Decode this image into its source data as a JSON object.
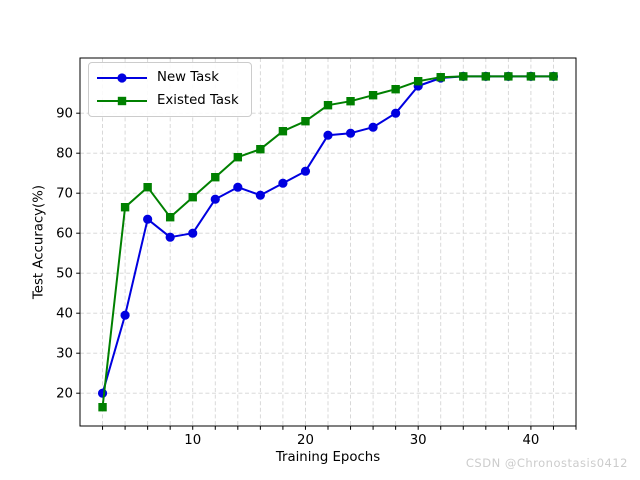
{
  "watermark": "CSDN @Chronostasis0412",
  "chart_data": {
    "type": "line",
    "title": "",
    "xlabel": "Training Epochs",
    "ylabel": "Test Accuracy(%)",
    "x": [
      2,
      4,
      6,
      8,
      10,
      12,
      14,
      16,
      18,
      20,
      22,
      24,
      26,
      28,
      30,
      32,
      34,
      36,
      38,
      40,
      42
    ],
    "series": [
      {
        "name": "New Task",
        "color": "#0000e0",
        "marker": "circle",
        "values": [
          20,
          39.5,
          63.5,
          59,
          60,
          68.5,
          71.5,
          69.5,
          72.5,
          75.5,
          84.5,
          85,
          86.5,
          90,
          96.8,
          98.8,
          99.2,
          99.2,
          99.2,
          99.2,
          99.2
        ]
      },
      {
        "name": "Existed Task",
        "color": "#008000",
        "marker": "square",
        "values": [
          16.5,
          66.5,
          71.5,
          64,
          69,
          74,
          79,
          81,
          85.5,
          88,
          92,
          93,
          94.5,
          96,
          98,
          99,
          99.2,
          99.2,
          99.2,
          99.2,
          99.2
        ]
      }
    ],
    "xlim": [
      0,
      44
    ],
    "ylim": [
      11.8,
      103.8
    ],
    "xtick_label_values": [
      10,
      20,
      30,
      40
    ],
    "xtick_minor_step": 2,
    "yticks": [
      20,
      30,
      40,
      50,
      60,
      70,
      80,
      90
    ],
    "grid": true,
    "grid_color": "#d4d4d4",
    "axis_color": "#000000",
    "legend_position": "upper left"
  }
}
